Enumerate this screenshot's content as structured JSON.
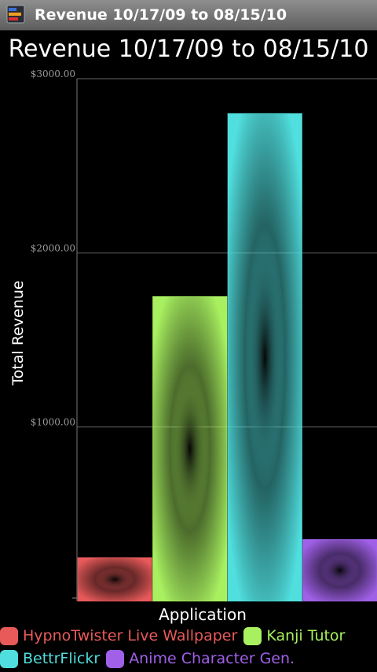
{
  "window": {
    "title": "Revenue 10/17/09 to 08/15/10",
    "icon": "bar-chart-app-icon"
  },
  "chart_data": {
    "type": "bar",
    "title": "Revenue 10/17/09 to 08/15/10",
    "xlabel": "Application",
    "ylabel": "Total Revenue",
    "categories": [
      "HypnoTwister Live Wallpaper",
      "Kanji Tutor",
      "BettrFlickr",
      "Anime Character Gen."
    ],
    "values": [
      250,
      1750,
      2800,
      355
    ],
    "ylim": [
      0,
      3000
    ],
    "yticks": [
      {
        "value": 1000,
        "label": "$1000.00"
      },
      {
        "value": 2000,
        "label": "$2000.00"
      },
      {
        "value": 3000,
        "label": "$3000.00"
      }
    ],
    "colors": [
      "#e85a5a",
      "#a8f060",
      "#50dede",
      "#a060e8"
    ],
    "grid": true,
    "legend": {
      "position": "bottom",
      "items": [
        {
          "label": "HypnoTwister Live Wallpaper",
          "color": "#e85a5a"
        },
        {
          "label": "Kanji Tutor",
          "color": "#a8f060"
        },
        {
          "label": "BettrFlickr",
          "color": "#50dede"
        },
        {
          "label": "Anime Character Gen.",
          "color": "#a060e8"
        }
      ]
    }
  }
}
